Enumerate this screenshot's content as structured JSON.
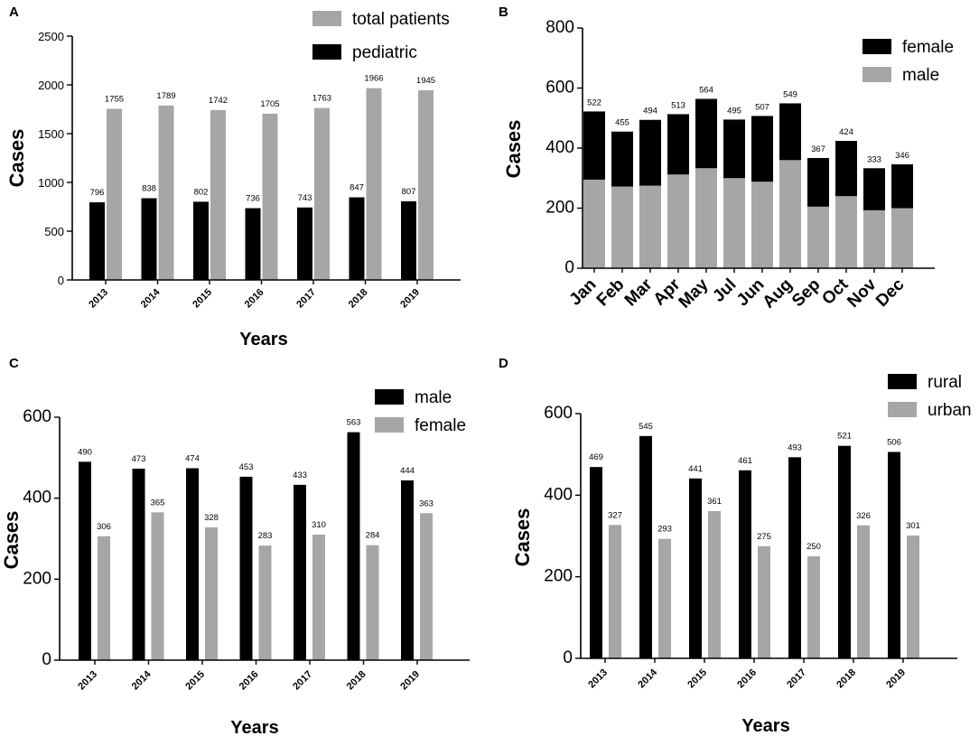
{
  "colors": {
    "black": "#000000",
    "gray": "#a6a6a6"
  },
  "chart_data": [
    {
      "panel": "A",
      "type": "bar",
      "categories": [
        "2013",
        "2014",
        "2015",
        "2016",
        "2017",
        "2018",
        "2019"
      ],
      "series": [
        {
          "name": "pediatric",
          "color": "#000000",
          "values": [
            796,
            838,
            802,
            736,
            743,
            847,
            807
          ]
        },
        {
          "name": "total patients",
          "color": "#a6a6a6",
          "values": [
            1755,
            1789,
            1742,
            1705,
            1763,
            1966,
            1945
          ]
        }
      ],
      "legend": [
        "total patients",
        "pediatric"
      ],
      "xlabel": "Years",
      "ylabel": "Cases",
      "ylim": [
        0,
        2500
      ],
      "yticks": [
        0,
        500,
        1000,
        1500,
        2000,
        2500
      ]
    },
    {
      "panel": "B",
      "type": "bar",
      "stacked": true,
      "categories": [
        "Jan",
        "Feb",
        "Mar",
        "Apr",
        "May",
        "Jul",
        "Jun",
        "Aug",
        "Sep",
        "Oct",
        "Nov",
        "Dec"
      ],
      "totals": [
        522,
        455,
        494,
        513,
        564,
        495,
        507,
        549,
        367,
        424,
        333,
        346
      ],
      "series": [
        {
          "name": "male",
          "color": "#a6a6a6",
          "values": [
            295,
            272,
            275,
            312,
            333,
            300,
            288,
            360,
            205,
            240,
            193,
            200
          ]
        },
        {
          "name": "female",
          "color": "#000000",
          "values": [
            227,
            183,
            219,
            201,
            231,
            195,
            219,
            189,
            162,
            184,
            140,
            146
          ]
        }
      ],
      "legend": [
        "female",
        "male"
      ],
      "xlabel": "",
      "ylabel": "Cases",
      "ylim": [
        0,
        800
      ],
      "yticks": [
        0,
        200,
        400,
        600,
        800
      ]
    },
    {
      "panel": "C",
      "type": "bar",
      "categories": [
        "2013",
        "2014",
        "2015",
        "2016",
        "2017",
        "2018",
        "2019"
      ],
      "series": [
        {
          "name": "male",
          "color": "#000000",
          "values": [
            490,
            473,
            474,
            453,
            433,
            563,
            444
          ]
        },
        {
          "name": "female",
          "color": "#a6a6a6",
          "values": [
            306,
            365,
            328,
            283,
            310,
            284,
            363
          ]
        }
      ],
      "legend": [
        "male",
        "female"
      ],
      "xlabel": "Years",
      "ylabel": "Cases",
      "ylim": [
        0,
        600
      ],
      "yticks": [
        0,
        200,
        400,
        600
      ]
    },
    {
      "panel": "D",
      "type": "bar",
      "categories": [
        "2013",
        "2014",
        "2015",
        "2016",
        "2017",
        "2018",
        "2019"
      ],
      "series": [
        {
          "name": "rural",
          "color": "#000000",
          "values": [
            469,
            545,
            441,
            461,
            493,
            521,
            506
          ]
        },
        {
          "name": "urban",
          "color": "#a6a6a6",
          "values": [
            327,
            293,
            361,
            275,
            250,
            326,
            301
          ]
        }
      ],
      "legend": [
        "rural",
        "urban"
      ],
      "xlabel": "Years",
      "ylabel": "Cases",
      "ylim": [
        0,
        600
      ],
      "yticks": [
        0,
        200,
        400,
        600
      ]
    }
  ]
}
